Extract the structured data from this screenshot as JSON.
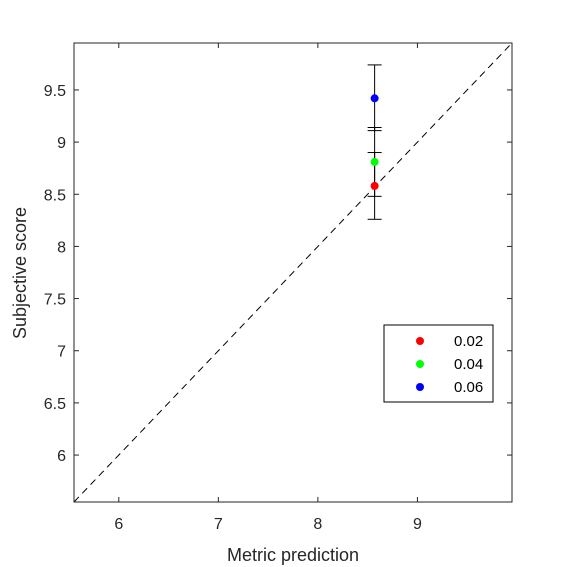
{
  "chart_data": {
    "type": "scatter",
    "xlabel": "Metric prediction",
    "ylabel": "Subjective score",
    "xlim": [
      5.55,
      9.95
    ],
    "ylim": [
      5.55,
      9.95
    ],
    "x_ticks": [
      6,
      7,
      8,
      9
    ],
    "y_ticks": [
      6,
      6.5,
      7,
      7.5,
      8,
      8.5,
      9,
      9.5
    ],
    "x_tick_labels": [
      "6",
      "7",
      "8",
      "9"
    ],
    "y_tick_labels": [
      "6",
      "6.5",
      "7",
      "7.5",
      "8",
      "8.5",
      "9",
      "9.5"
    ],
    "grid": false,
    "legend_position": "lower-right",
    "reference_line": "y = x (dashed)",
    "series": [
      {
        "name": "0.02",
        "color": "#ff0000",
        "x": 8.57,
        "y": 8.58,
        "err_low": 8.26,
        "err_high": 8.9
      },
      {
        "name": "0.04",
        "color": "#00ff00",
        "x": 8.57,
        "y": 8.81,
        "err_low": 8.48,
        "err_high": 9.14
      },
      {
        "name": "0.06",
        "color": "#0000ff",
        "x": 8.57,
        "y": 9.42,
        "err_low": 9.11,
        "err_high": 9.74
      }
    ]
  }
}
